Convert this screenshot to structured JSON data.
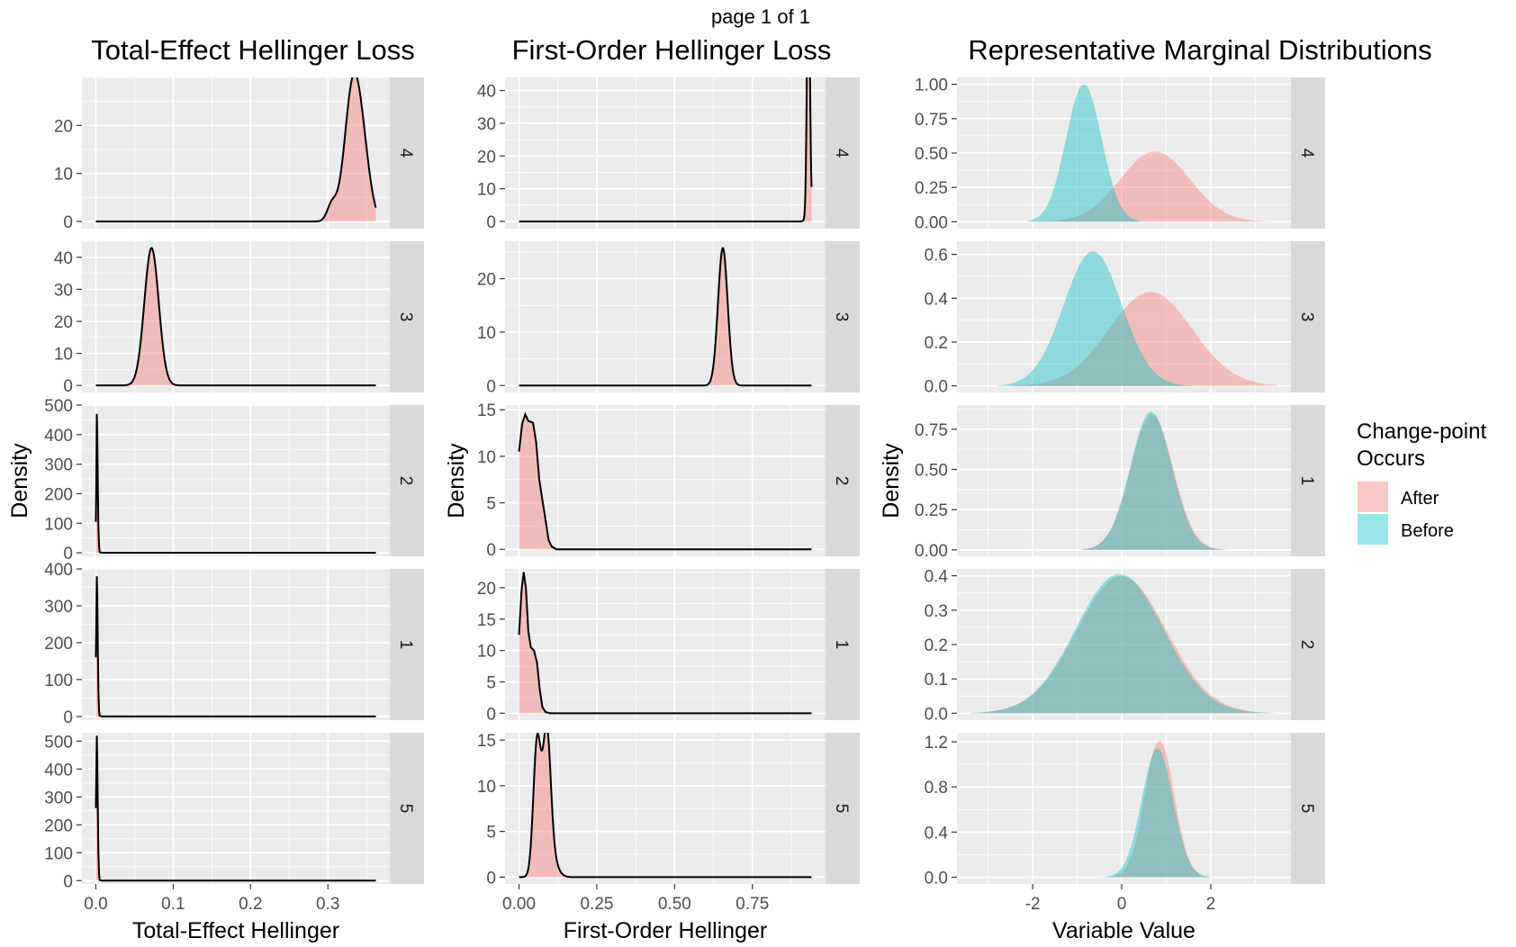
{
  "page_label": "page 1 of 1",
  "legend": {
    "title_line1": "Change-point",
    "title_line2": "Occurs",
    "items": [
      {
        "label": "After",
        "color": "#F8766D"
      },
      {
        "label": "Before",
        "color": "#00BFC4"
      }
    ]
  },
  "colors": {
    "panel_bg": "#EBEBEB",
    "strip_bg": "#D9D9D9",
    "grid": "#FFFFFF",
    "after_fill": "#F8766D",
    "before_fill": "#00BFC4",
    "density_line": "#000000"
  },
  "chart_data": [
    {
      "type": "area",
      "title": "Total-Effect Hellinger Loss",
      "xlabel": "Total-Effect Hellinger",
      "ylabel": "Density",
      "xlim": [
        -0.018,
        0.38
      ],
      "x_ticks": [
        0.0,
        0.1,
        0.2,
        0.3
      ],
      "x_tick_labels": [
        "0.0",
        "0.1",
        "0.2",
        "0.3"
      ],
      "grid": true,
      "facets": [
        {
          "strip": "4",
          "ylim": [
            -1.5,
            30
          ],
          "y_ticks": [
            0,
            10,
            20
          ],
          "y_tick_labels": [
            "0",
            "10",
            "20"
          ],
          "x_range": [
            0,
            0.362
          ],
          "series": [
            {
              "kind": "density_mix",
              "components": [
                [
                  0.333,
                  0.011,
                  0.8
                ],
                [
                  0.348,
                  0.009,
                  0.15
                ],
                [
                  0.305,
                  0.006,
                  0.05
                ]
              ],
              "area": 1,
              "fill": "after"
            }
          ]
        },
        {
          "strip": "3",
          "ylim": [
            -2.2,
            45
          ],
          "y_ticks": [
            0,
            10,
            20,
            30,
            40
          ],
          "y_tick_labels": [
            "0",
            "10",
            "20",
            "30",
            "40"
          ],
          "x_range": [
            0,
            0.362
          ],
          "series": [
            {
              "kind": "density_mix",
              "components": [
                [
                  0.072,
                  0.0093,
                  1.0
                ]
              ],
              "area": 1,
              "fill": "after"
            }
          ]
        },
        {
          "strip": "2",
          "ylim": [
            -12,
            500
          ],
          "y_ticks": [
            0,
            100,
            200,
            300,
            400,
            500
          ],
          "y_tick_labels": [
            "0",
            "100",
            "200",
            "300",
            "400",
            "500"
          ],
          "x_range": [
            0,
            0.362
          ],
          "series": [
            {
              "kind": "density_points",
              "points": [
                [
                  0.0,
                  105
                ],
                [
                  0.0006,
                  240
                ],
                [
                  0.0012,
                  470
                ],
                [
                  0.0018,
                  420
                ],
                [
                  0.0025,
                  250
                ],
                [
                  0.0033,
                  90
                ],
                [
                  0.0042,
                  20
                ],
                [
                  0.005,
                  2
                ],
                [
                  0.008,
                  0
                ],
                [
                  0.362,
                  0
                ]
              ],
              "fill": "after"
            }
          ]
        },
        {
          "strip": "1",
          "ylim": [
            -10,
            400
          ],
          "y_ticks": [
            0,
            100,
            200,
            300,
            400
          ],
          "y_tick_labels": [
            "0",
            "100",
            "200",
            "300",
            "400"
          ],
          "x_range": [
            0,
            0.362
          ],
          "series": [
            {
              "kind": "density_points",
              "points": [
                [
                  0.0,
                  160
                ],
                [
                  0.0006,
                  250
                ],
                [
                  0.0012,
                  380
                ],
                [
                  0.0018,
                  340
                ],
                [
                  0.0025,
                  200
                ],
                [
                  0.0033,
                  70
                ],
                [
                  0.0042,
                  15
                ],
                [
                  0.005,
                  2
                ],
                [
                  0.008,
                  0
                ],
                [
                  0.362,
                  0
                ]
              ],
              "fill": "after"
            }
          ]
        },
        {
          "strip": "5",
          "ylim": [
            -12,
            530
          ],
          "y_ticks": [
            0,
            100,
            200,
            300,
            400,
            500
          ],
          "y_tick_labels": [
            "0",
            "100",
            "200",
            "300",
            "400",
            "500"
          ],
          "x_range": [
            0,
            0.362
          ],
          "series": [
            {
              "kind": "density_points",
              "points": [
                [
                  0.0,
                  260
                ],
                [
                  0.0006,
                  380
                ],
                [
                  0.0012,
                  520
                ],
                [
                  0.0018,
                  450
                ],
                [
                  0.0025,
                  270
                ],
                [
                  0.0033,
                  100
                ],
                [
                  0.0042,
                  22
                ],
                [
                  0.005,
                  2
                ],
                [
                  0.008,
                  0
                ],
                [
                  0.362,
                  0
                ]
              ],
              "fill": "after"
            }
          ]
        }
      ]
    },
    {
      "type": "area",
      "title": "First-Order Hellinger Loss",
      "xlabel": "First-Order Hellinger",
      "ylabel": "Density",
      "xlim": [
        -0.045,
        0.985
      ],
      "x_ticks": [
        0.0,
        0.25,
        0.5,
        0.75
      ],
      "x_tick_labels": [
        "0.00",
        "0.25",
        "0.50",
        "0.75"
      ],
      "grid": true,
      "facets": [
        {
          "strip": "4",
          "ylim": [
            -2.2,
            44
          ],
          "y_ticks": [
            0,
            10,
            20,
            30,
            40
          ],
          "y_tick_labels": [
            "0",
            "10",
            "20",
            "30",
            "40"
          ],
          "x_range": [
            0,
            0.94
          ],
          "series": [
            {
              "kind": "density_mix",
              "components": [
                [
                  0.93,
                  0.0045,
                  0.9
                ],
                [
                  0.935,
                  0.009,
                  0.1
                ]
              ],
              "area": 1,
              "fill": "after"
            }
          ]
        },
        {
          "strip": "3",
          "ylim": [
            -1.3,
            27
          ],
          "y_ticks": [
            0,
            10,
            20
          ],
          "y_tick_labels": [
            "0",
            "10",
            "20"
          ],
          "x_range": [
            0,
            0.94
          ],
          "series": [
            {
              "kind": "density_mix",
              "components": [
                [
                  0.655,
                  0.0155,
                  1.0
                ]
              ],
              "area": 1,
              "fill": "after"
            }
          ]
        },
        {
          "strip": "2",
          "ylim": [
            -0.75,
            15.5
          ],
          "y_ticks": [
            0,
            5,
            10,
            15
          ],
          "y_tick_labels": [
            "0",
            "5",
            "10",
            "15"
          ],
          "x_range": [
            0,
            0.94
          ],
          "series": [
            {
              "kind": "density_points",
              "points": [
                [
                  0.0,
                  10.5
                ],
                [
                  0.01,
                  13.5
                ],
                [
                  0.02,
                  14.5
                ],
                [
                  0.03,
                  13.8
                ],
                [
                  0.045,
                  13.6
                ],
                [
                  0.055,
                  11.5
                ],
                [
                  0.065,
                  7.5
                ],
                [
                  0.075,
                  5.3
                ],
                [
                  0.085,
                  3.2
                ],
                [
                  0.095,
                  1.0
                ],
                [
                  0.105,
                  0.3
                ],
                [
                  0.12,
                  0
                ],
                [
                  0.94,
                  0
                ]
              ],
              "fill": "after"
            }
          ]
        },
        {
          "strip": "1",
          "ylim": [
            -1.1,
            23
          ],
          "y_ticks": [
            0,
            5,
            10,
            15,
            20
          ],
          "y_tick_labels": [
            "0",
            "5",
            "10",
            "15",
            "20"
          ],
          "x_range": [
            0,
            0.94
          ],
          "series": [
            {
              "kind": "density_points",
              "points": [
                [
                  0.0,
                  12.5
                ],
                [
                  0.008,
                  19.5
                ],
                [
                  0.015,
                  22.5
                ],
                [
                  0.022,
                  20.0
                ],
                [
                  0.03,
                  13.0
                ],
                [
                  0.038,
                  10.5
                ],
                [
                  0.048,
                  10.0
                ],
                [
                  0.058,
                  8.0
                ],
                [
                  0.066,
                  4.0
                ],
                [
                  0.075,
                  1.0
                ],
                [
                  0.085,
                  0.2
                ],
                [
                  0.1,
                  0
                ],
                [
                  0.94,
                  0
                ]
              ],
              "fill": "after"
            }
          ]
        },
        {
          "strip": "5",
          "ylim": [
            -0.75,
            15.8
          ],
          "y_ticks": [
            0,
            5,
            10,
            15
          ],
          "y_tick_labels": [
            "0",
            "5",
            "10",
            "15"
          ],
          "x_range": [
            0,
            0.94
          ],
          "series": [
            {
              "kind": "density_mix",
              "components": [
                [
                  0.058,
                  0.012,
                  0.44
                ],
                [
                  0.089,
                  0.0125,
                  0.44
                ],
                [
                  0.1,
                  0.02,
                  0.12
                ]
              ],
              "area": 1,
              "fill": "after"
            }
          ]
        }
      ]
    },
    {
      "type": "area",
      "title": "Representative Marginal Distributions",
      "xlabel": "Variable Value",
      "ylabel": "Density",
      "xlim": [
        -3.7,
        3.8
      ],
      "x_ticks": [
        -2,
        0,
        2
      ],
      "x_tick_labels": [
        "-2",
        "0",
        "2"
      ],
      "grid": true,
      "facets": [
        {
          "strip": "4",
          "ylim": [
            -0.05,
            1.05
          ],
          "y_ticks": [
            0,
            0.25,
            0.5,
            0.75,
            1.0
          ],
          "y_tick_labels": [
            "0.00",
            "0.25",
            "0.50",
            "0.75",
            "1.00"
          ],
          "series": [
            {
              "name": "After",
              "kind": "normal",
              "mean": 0.75,
              "sd": 0.78,
              "x_range": [
                -2.0,
                3.4
              ],
              "fill": "after"
            },
            {
              "name": "Before",
              "kind": "normal",
              "mean": -0.85,
              "sd": 0.4,
              "x_range": [
                -2.1,
                0.4
              ],
              "fill": "before"
            }
          ]
        },
        {
          "strip": "3",
          "ylim": [
            -0.03,
            0.66
          ],
          "y_ticks": [
            0,
            0.2,
            0.4,
            0.6
          ],
          "y_tick_labels": [
            "0.0",
            "0.2",
            "0.4",
            "0.6"
          ],
          "series": [
            {
              "name": "After",
              "kind": "normal",
              "mean": 0.65,
              "sd": 0.93,
              "x_range": [
                -2.5,
                3.5
              ],
              "fill": "after"
            },
            {
              "name": "Before",
              "kind": "normal",
              "mean": -0.65,
              "sd": 0.65,
              "x_range": [
                -2.8,
                1.6
              ],
              "fill": "before"
            }
          ]
        },
        {
          "strip": "1",
          "ylim": [
            -0.04,
            0.9
          ],
          "y_ticks": [
            0,
            0.25,
            0.5,
            0.75
          ],
          "y_tick_labels": [
            "0.00",
            "0.25",
            "0.50",
            "0.75"
          ],
          "series": [
            {
              "name": "After",
              "kind": "normal",
              "mean": 0.68,
              "sd": 0.475,
              "x_range": [
                -0.9,
                2.4
              ],
              "fill": "after"
            },
            {
              "name": "Before",
              "kind": "normal",
              "mean": 0.66,
              "sd": 0.465,
              "x_range": [
                -0.9,
                2.3
              ],
              "fill": "before"
            }
          ]
        },
        {
          "strip": "2",
          "ylim": [
            -0.02,
            0.42
          ],
          "y_ticks": [
            0,
            0.1,
            0.2,
            0.3,
            0.4
          ],
          "y_tick_labels": [
            "0.0",
            "0.1",
            "0.2",
            "0.3",
            "0.4"
          ],
          "series": [
            {
              "name": "After",
              "kind": "normal",
              "mean": 0.0,
              "sd": 1.0,
              "x_range": [
                -3.4,
                3.4
              ],
              "fill": "after"
            },
            {
              "name": "Before",
              "kind": "normal",
              "mean": -0.05,
              "sd": 0.985,
              "x_range": [
                -3.4,
                3.4
              ],
              "fill": "before"
            }
          ]
        },
        {
          "strip": "5",
          "ylim": [
            -0.06,
            1.28
          ],
          "y_ticks": [
            0,
            0.4,
            0.8,
            1.2
          ],
          "y_tick_labels": [
            "0.0",
            "0.4",
            "0.8",
            "1.2"
          ],
          "series": [
            {
              "name": "After",
              "kind": "normal",
              "mean": 0.85,
              "sd": 0.33,
              "x_range": [
                -0.4,
                2.0
              ],
              "fill": "after"
            },
            {
              "name": "Before",
              "kind": "normal",
              "mean": 0.8,
              "sd": 0.35,
              "x_range": [
                -0.5,
                2.0
              ],
              "fill": "before"
            }
          ]
        }
      ]
    }
  ]
}
